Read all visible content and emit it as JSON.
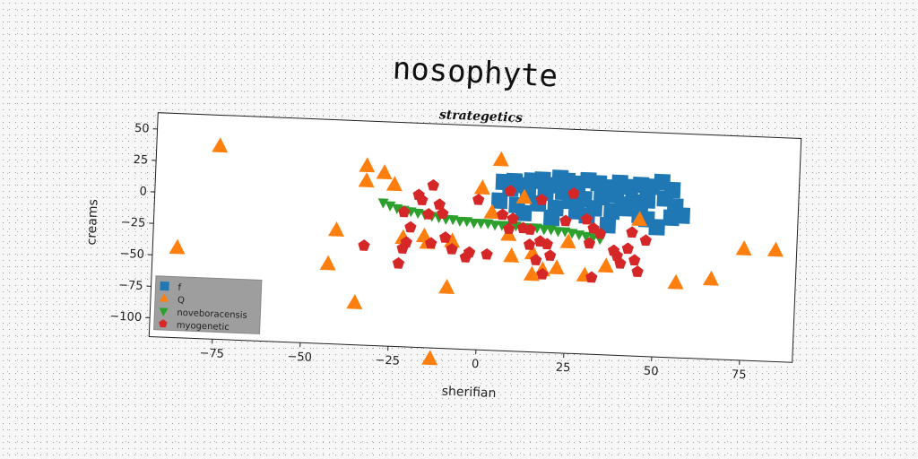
{
  "chart_data": {
    "type": "scatter",
    "title": "nosophyte",
    "subtitle": "strategetics",
    "xlabel": "sherifian",
    "ylabel": "creams",
    "xlim": [
      -93,
      90
    ],
    "ylim": [
      -115,
      63
    ],
    "x_ticks": [
      -75,
      -50,
      -25,
      0,
      25,
      50,
      75
    ],
    "x_tick_labels": [
      "−75",
      "−50",
      "−25",
      "0",
      "25",
      "50",
      "75"
    ],
    "y_ticks": [
      50,
      25,
      0,
      -25,
      -50,
      -75,
      -100
    ],
    "y_tick_labels": [
      "50",
      "25",
      "0",
      "−25",
      "−50",
      "−75",
      "−100"
    ],
    "grid": false,
    "legend_position": "lower-left",
    "series": [
      {
        "name": "f",
        "color": "#1f77b4",
        "marker": "square",
        "points": [
          [
            6,
            19
          ],
          [
            9,
            20
          ],
          [
            12,
            17
          ],
          [
            14,
            21
          ],
          [
            17,
            22
          ],
          [
            20,
            18
          ],
          [
            22,
            24
          ],
          [
            24,
            22
          ],
          [
            27,
            20
          ],
          [
            30,
            23
          ],
          [
            33,
            21
          ],
          [
            36,
            18
          ],
          [
            39,
            22
          ],
          [
            42,
            19
          ],
          [
            45,
            21
          ],
          [
            48,
            20
          ],
          [
            51,
            24
          ],
          [
            54,
            18
          ],
          [
            8,
            14
          ],
          [
            13,
            10
          ],
          [
            18,
            12
          ],
          [
            23,
            13
          ],
          [
            29,
            8
          ],
          [
            34,
            10
          ],
          [
            38,
            12
          ],
          [
            43,
            7
          ],
          [
            47,
            9
          ],
          [
            52,
            11
          ],
          [
            55,
            5
          ],
          [
            57,
            -2
          ],
          [
            5,
            4
          ],
          [
            10,
            1
          ],
          [
            16,
            3
          ],
          [
            21,
            0
          ],
          [
            27,
            -2
          ],
          [
            32,
            1
          ],
          [
            37,
            -1
          ],
          [
            41,
            2
          ],
          [
            47,
            -6
          ],
          [
            50,
            -12
          ],
          [
            36,
            -12
          ],
          [
            20,
            -8
          ],
          [
            12,
            -5
          ],
          [
            25,
            6
          ],
          [
            30,
            -5
          ],
          [
            54,
            -4
          ],
          [
            45,
            -3
          ],
          [
            40,
            5
          ]
        ]
      },
      {
        "name": "Q",
        "color": "#ff7f0e",
        "marker": "triangle-up",
        "points": [
          [
            -75,
            38
          ],
          [
            -33,
            27
          ],
          [
            -28,
            22
          ],
          [
            -33,
            15
          ],
          [
            -25,
            13
          ],
          [
            5,
            36
          ],
          [
            0,
            13
          ],
          [
            -86,
            -44
          ],
          [
            -41,
            -25
          ],
          [
            -22,
            -29
          ],
          [
            -16,
            -27
          ],
          [
            -15,
            -32
          ],
          [
            -8,
            -30
          ],
          [
            8,
            -23
          ],
          [
            9,
            -40
          ],
          [
            15,
            -37
          ],
          [
            15,
            -54
          ],
          [
            18,
            -50
          ],
          [
            22,
            -48
          ],
          [
            25,
            -27
          ],
          [
            30,
            -53
          ],
          [
            36,
            -45
          ],
          [
            45,
            -7
          ],
          [
            56,
            -56
          ],
          [
            66,
            -52
          ],
          [
            75,
            -27
          ],
          [
            84,
            -27
          ],
          [
            -43,
            -52
          ],
          [
            -35,
            -82
          ],
          [
            -13,
            -124
          ],
          [
            -9,
            -67
          ],
          [
            3,
            -6
          ],
          [
            12,
            7
          ]
        ]
      },
      {
        "name": "noveboracensis",
        "color": "#2ca02c",
        "marker": "triangle-down",
        "points": [
          [
            -28,
            -1
          ],
          [
            -26,
            -3
          ],
          [
            -24,
            -5
          ],
          [
            -22,
            -6
          ],
          [
            -20,
            -7
          ],
          [
            -18,
            -8
          ],
          [
            -16,
            -9
          ],
          [
            -14,
            -10
          ],
          [
            -12,
            -11
          ],
          [
            -10,
            -12
          ],
          [
            -8,
            -12
          ],
          [
            -6,
            -13
          ],
          [
            -4,
            -13
          ],
          [
            -2,
            -14
          ],
          [
            0,
            -14
          ],
          [
            2,
            -14
          ],
          [
            4,
            -15
          ],
          [
            6,
            -15
          ],
          [
            8,
            -15
          ],
          [
            10,
            -15
          ],
          [
            12,
            -16
          ],
          [
            14,
            -16
          ],
          [
            16,
            -16
          ],
          [
            18,
            -17
          ],
          [
            20,
            -17
          ],
          [
            22,
            -18
          ],
          [
            24,
            -18
          ],
          [
            26,
            -19
          ],
          [
            28,
            -20
          ],
          [
            30,
            -21
          ],
          [
            32,
            -22
          ],
          [
            34,
            -23
          ]
        ]
      },
      {
        "name": "myogenetic",
        "color": "#d62728",
        "marker": "pentagon",
        "points": [
          [
            -14,
            14
          ],
          [
            -18,
            6
          ],
          [
            -17,
            2
          ],
          [
            -12,
            -1
          ],
          [
            -11,
            -8
          ],
          [
            -15,
            -9
          ],
          [
            -22,
            -8
          ],
          [
            -20,
            -20
          ],
          [
            -21,
            -32
          ],
          [
            -22,
            -37
          ],
          [
            -14,
            -32
          ],
          [
            -10,
            -27
          ],
          [
            -8,
            -36
          ],
          [
            -3,
            -38
          ],
          [
            -4,
            -42
          ],
          [
            2,
            -39
          ],
          [
            8,
            -18
          ],
          [
            9,
            -10
          ],
          [
            12,
            -17
          ],
          [
            14,
            -30
          ],
          [
            17,
            -27
          ],
          [
            19,
            -29
          ],
          [
            16,
            -42
          ],
          [
            18,
            -53
          ],
          [
            20,
            -38
          ],
          [
            26,
            12
          ],
          [
            30,
            -8
          ],
          [
            32,
            -15
          ],
          [
            34,
            -19
          ],
          [
            31,
            -27
          ],
          [
            38,
            -32
          ],
          [
            39,
            -36
          ],
          [
            40,
            -42
          ],
          [
            42,
            -30
          ],
          [
            43,
            -17
          ],
          [
            44,
            -39
          ],
          [
            45,
            -48
          ],
          [
            47,
            -23
          ],
          [
            32,
            -54
          ],
          [
            -33,
            -36
          ],
          [
            -23,
            -49
          ],
          [
            -1,
            4
          ],
          [
            8,
            12
          ],
          [
            6,
            -7
          ],
          [
            17,
            6
          ],
          [
            14,
            -18
          ],
          [
            24,
            -10
          ]
        ]
      }
    ]
  }
}
